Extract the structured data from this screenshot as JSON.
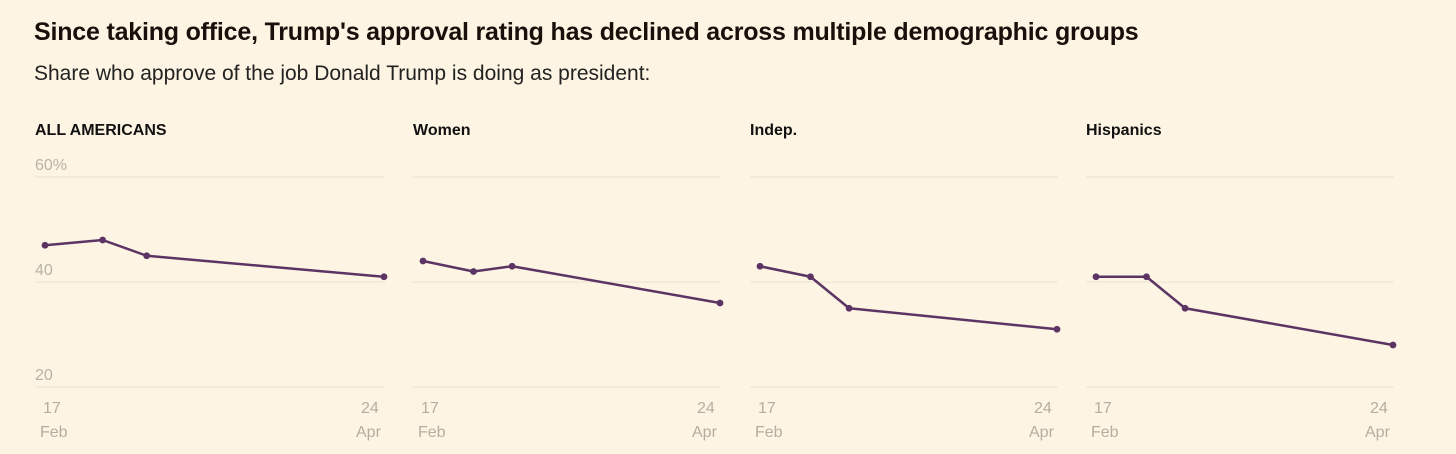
{
  "title": "Since taking office, Trump's approval rating has declined across multiple demographic groups",
  "subtitle": "Share who approve of the job Donald Trump is doing as president:",
  "colors": {
    "background": "#fdf4e3",
    "line": "#5b3464",
    "grid": "#ece3d2",
    "tick": "#b5ae9f"
  },
  "chart_data": [
    {
      "type": "line",
      "title": "ALL AMERICANS",
      "x": [
        "17 Feb",
        "late Feb",
        "early Mar",
        "24 Apr"
      ],
      "x_ticks": [
        [
          "17",
          "Feb"
        ],
        [
          "24",
          "Apr"
        ]
      ],
      "y_ticks": [
        "60%",
        "40",
        "20"
      ],
      "ylim": [
        20,
        60
      ],
      "grid": true,
      "series": [
        {
          "values": [
            47,
            48,
            45,
            41
          ]
        }
      ]
    },
    {
      "type": "line",
      "title": "Women",
      "x": [
        "17 Feb",
        "late Feb",
        "early Mar",
        "24 Apr"
      ],
      "x_ticks": [
        [
          "17",
          "Feb"
        ],
        [
          "24",
          "Apr"
        ]
      ],
      "ylim": [
        20,
        60
      ],
      "grid": true,
      "series": [
        {
          "values": [
            44,
            42,
            43,
            36
          ]
        }
      ]
    },
    {
      "type": "line",
      "title": "Indep.",
      "x": [
        "17 Feb",
        "late Feb",
        "early Mar",
        "24 Apr"
      ],
      "x_ticks": [
        [
          "17",
          "Feb"
        ],
        [
          "24",
          "Apr"
        ]
      ],
      "ylim": [
        20,
        60
      ],
      "grid": true,
      "series": [
        {
          "values": [
            43,
            41,
            35,
            31
          ]
        }
      ]
    },
    {
      "type": "line",
      "title": "Hispanics",
      "x": [
        "17 Feb",
        "late Feb",
        "early Mar",
        "24 Apr"
      ],
      "x_ticks": [
        [
          "17",
          "Feb"
        ],
        [
          "24",
          "Apr"
        ]
      ],
      "ylim": [
        20,
        60
      ],
      "grid": true,
      "series": [
        {
          "values": [
            41,
            41,
            35,
            28
          ]
        }
      ]
    }
  ]
}
